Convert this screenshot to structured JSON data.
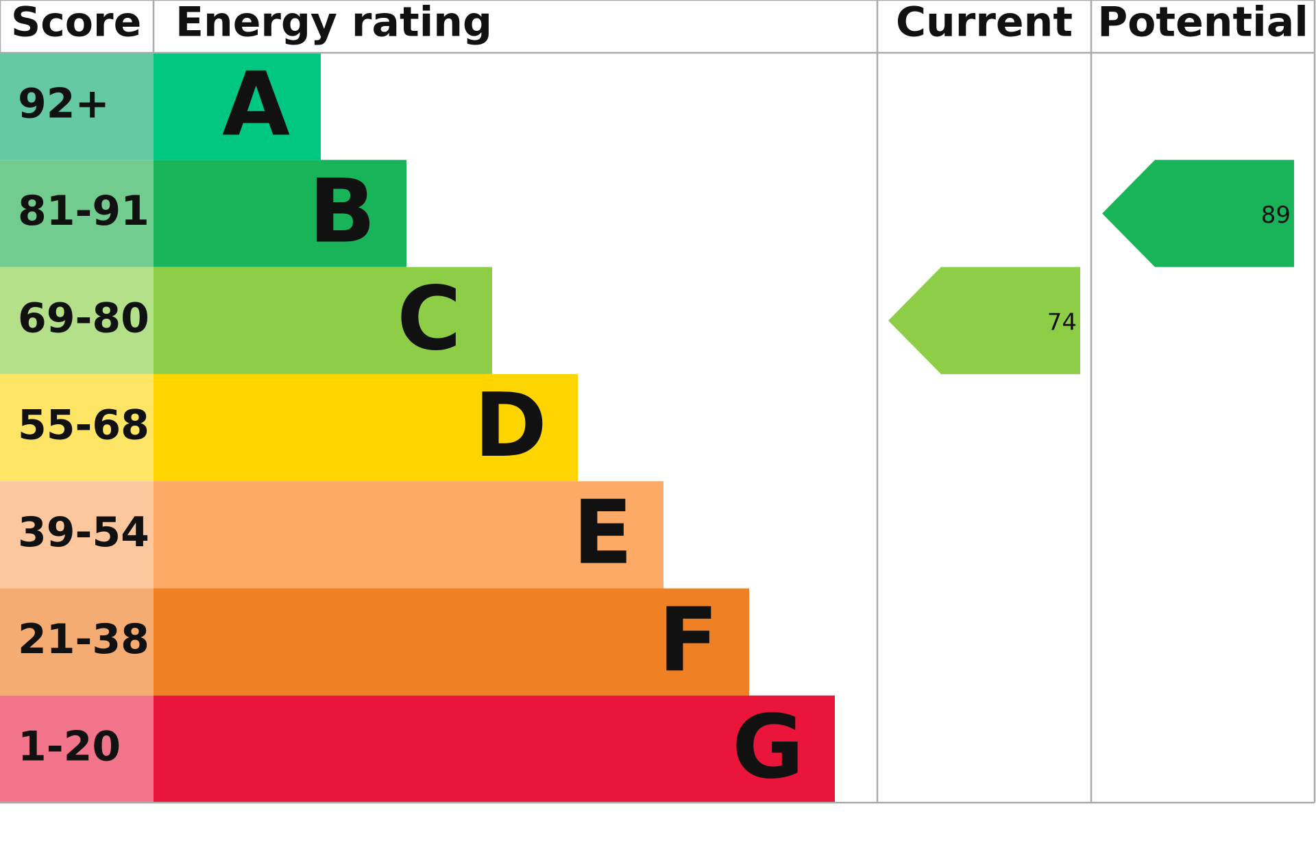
{
  "headers": {
    "score": "Score",
    "rating": "Energy rating",
    "current": "Current",
    "potential": "Potential"
  },
  "bands": [
    {
      "score": "92+",
      "letter": "A",
      "color": "#00c781",
      "score_color": "#64c9a4"
    },
    {
      "score": "81-91",
      "letter": "B",
      "color": "#19b459",
      "score_color": "#72cc8f"
    },
    {
      "score": "69-80",
      "letter": "C",
      "color": "#8dce46",
      "score_color": "#b3e088"
    },
    {
      "score": "55-68",
      "letter": "D",
      "color": "#ffd500",
      "score_color": "#ffe566"
    },
    {
      "score": "39-54",
      "letter": "E",
      "color": "#fcaa65",
      "score_color": "#fdc79e"
    },
    {
      "score": "21-38",
      "letter": "F",
      "color": "#ef8023",
      "score_color": "#f4ac72"
    },
    {
      "score": "1-20",
      "letter": "G",
      "color": "#e9153b",
      "score_color": "#f2758b"
    }
  ],
  "current": 74,
  "potential": 89
}
